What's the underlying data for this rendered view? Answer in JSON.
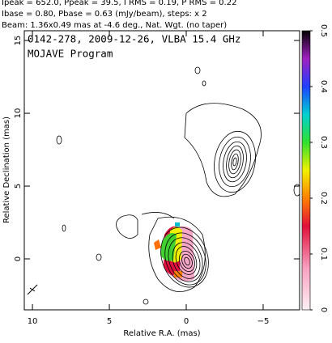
{
  "chart_data": {
    "type": "contour",
    "header": [
      "Ipeak = 652.0, Ppeak = 39.5, I RMS = 0.19, P RMS = 0.22",
      "Ibase = 0.80, Pbase = 0.63 (mJy/beam), steps: x 2",
      "Beam: 1.36x0.49 mas at -4.6 deg., Nat. Wgt. (no taper)"
    ],
    "title": "0142-278, 2009-12-26, VLBA 15.4 GHz",
    "subtitle": "MOJAVE Program",
    "x_label": "Relative R.A. (mas)",
    "y_label": "Relative Declination (mas)",
    "xlim": [
      10.53,
      -7.37
    ],
    "xticks": [
      10,
      5,
      0,
      {
        "value": -5,
        "label": "−5"
      }
    ],
    "ylim": [
      -3.5,
      15.67
    ],
    "yticks": [
      0,
      5,
      10,
      15
    ],
    "colorbar": {
      "lim": [
        0,
        0.5
      ],
      "ticks": [
        0,
        0.1,
        0.2,
        0.3,
        0.4,
        0.5
      ]
    }
  }
}
